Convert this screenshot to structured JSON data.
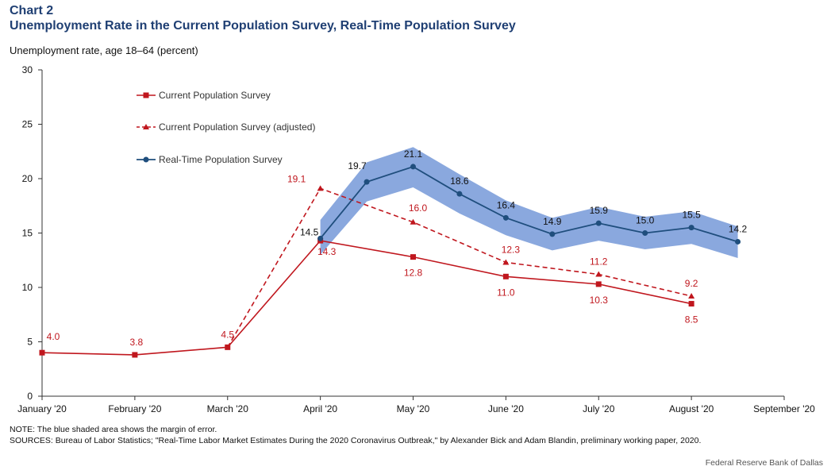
{
  "chart_number": "Chart 2",
  "title": "Unemployment Rate in the Current Population Survey, Real-Time Population Survey",
  "note": "NOTE: The blue shaded area shows the margin of error.",
  "sources": "SOURCES: Bureau of Labor Statistics; \"Real-Time Labor Market Estimates During the 2020 Coronavirus Outbreak,\" by Alexander Bick and Adam Blandin, preliminary working paper, 2020.",
  "credit": "Federal Reserve Bank of Dallas",
  "colors": {
    "cps": "#c0171e",
    "rps": "#1f4e7d",
    "band": "#8aa8de",
    "title": "#1f3f73"
  },
  "chart_data": {
    "type": "line",
    "ylabel": "Unemployment rate, age 18–64 (percent)",
    "xlabel": "",
    "ylim": [
      0,
      30
    ],
    "yticks": [
      0,
      5,
      10,
      15,
      20,
      25,
      30
    ],
    "x_range": [
      1,
      9
    ],
    "xticks": [
      {
        "x": 1,
        "label": "January '20"
      },
      {
        "x": 2,
        "label": "February '20"
      },
      {
        "x": 3,
        "label": "March '20"
      },
      {
        "x": 4,
        "label": "April '20"
      },
      {
        "x": 5,
        "label": "May '20"
      },
      {
        "x": 6,
        "label": "June '20"
      },
      {
        "x": 7,
        "label": "July '20"
      },
      {
        "x": 8,
        "label": "August '20"
      },
      {
        "x": 9,
        "label": "September '20"
      }
    ],
    "legend_position": "top-left",
    "grid": false,
    "series": [
      {
        "name": "Current Population Survey",
        "style": "solid",
        "marker": "square",
        "color": "#c0171e",
        "x": [
          1,
          2,
          3,
          4,
          5,
          6,
          7,
          8
        ],
        "y": [
          4.0,
          3.8,
          4.5,
          14.3,
          12.8,
          11.0,
          10.3,
          8.5
        ],
        "labels": [
          "4.0",
          "3.8",
          "4.5",
          "14.3",
          "12.8",
          "11.0",
          "10.3",
          "8.5"
        ]
      },
      {
        "name": "Current Population Survey (adjusted)",
        "style": "dashed",
        "marker": "triangle",
        "color": "#c0171e",
        "x": [
          3,
          4,
          5,
          6,
          7,
          8
        ],
        "y": [
          4.5,
          19.1,
          16.0,
          12.3,
          11.2,
          9.2
        ],
        "labels": [
          "",
          "19.1",
          "16.0",
          "12.3",
          "11.2",
          "9.2"
        ]
      },
      {
        "name": "Real-Time Population Survey",
        "style": "solid",
        "marker": "circle",
        "color": "#1f4e7d",
        "x": [
          4,
          4.5,
          5,
          5.5,
          6,
          6.5,
          7,
          7.5,
          8,
          8.5
        ],
        "y": [
          14.5,
          19.7,
          21.1,
          18.6,
          16.4,
          14.9,
          15.9,
          15.0,
          15.5,
          14.2
        ],
        "labels": [
          "14.5",
          "19.7",
          "21.1",
          "18.6",
          "16.4",
          "14.9",
          "15.9",
          "15.0",
          "15.5",
          "14.2"
        ],
        "error_band": {
          "upper": [
            16.2,
            21.5,
            22.9,
            20.4,
            18.0,
            16.4,
            17.4,
            16.5,
            17.0,
            15.6
          ],
          "lower": [
            13.0,
            17.9,
            19.2,
            16.8,
            14.8,
            13.4,
            14.3,
            13.5,
            14.0,
            12.7
          ]
        }
      }
    ]
  }
}
